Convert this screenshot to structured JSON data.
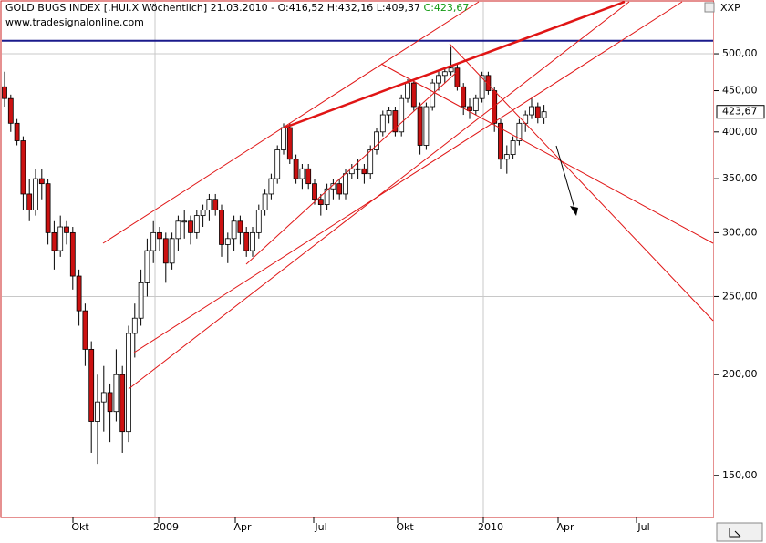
{
  "chart_data": {
    "type": "candlestick",
    "title": "GOLD BUGS INDEX [.HUI.X  Wöchentlich] 21.03.2010 - O:416,52 H:432,16 L:409,37",
    "close_text": "C:423,67",
    "source": "www.tradesignalonline.com",
    "symbol": "XXP",
    "last_price_label": "423,67",
    "log_scale": true,
    "up_color": "#ffffff",
    "down_color": "#cc1111",
    "ylim": [
      133,
      580
    ],
    "yticks": [
      {
        "value": 150,
        "label": "150,00"
      },
      {
        "value": 200,
        "label": "200,00"
      },
      {
        "value": 250,
        "label": "250,00"
      },
      {
        "value": 300,
        "label": "300,00"
      },
      {
        "value": 350,
        "label": "350,00"
      },
      {
        "value": 400,
        "label": "400,00"
      },
      {
        "value": 450,
        "label": "450,00"
      },
      {
        "value": 500,
        "label": "500,00"
      }
    ],
    "grid_values": [
      500,
      250
    ],
    "reference_line": {
      "value": 519,
      "color": "#1a1a8c"
    },
    "xtick_labels": [
      "Okt",
      "2009",
      "Apr",
      "Jul",
      "Okt",
      "2010",
      "Apr",
      "Jul"
    ],
    "candles": [
      [
        455,
        475,
        430,
        440
      ],
      [
        440,
        445,
        400,
        410
      ],
      [
        410,
        415,
        385,
        390
      ],
      [
        390,
        395,
        320,
        335
      ],
      [
        335,
        350,
        310,
        320
      ],
      [
        320,
        360,
        315,
        350
      ],
      [
        350,
        360,
        330,
        345
      ],
      [
        345,
        350,
        290,
        300
      ],
      [
        300,
        310,
        270,
        285
      ],
      [
        285,
        315,
        280,
        305
      ],
      [
        305,
        310,
        290,
        300
      ],
      [
        300,
        305,
        255,
        265
      ],
      [
        265,
        270,
        230,
        240
      ],
      [
        240,
        245,
        205,
        215
      ],
      [
        215,
        220,
        160,
        175
      ],
      [
        175,
        200,
        155,
        185
      ],
      [
        185,
        205,
        170,
        190
      ],
      [
        190,
        195,
        165,
        180
      ],
      [
        180,
        215,
        175,
        200
      ],
      [
        200,
        205,
        160,
        170
      ],
      [
        170,
        230,
        165,
        225
      ],
      [
        225,
        245,
        210,
        235
      ],
      [
        235,
        270,
        230,
        260
      ],
      [
        260,
        295,
        250,
        285
      ],
      [
        285,
        310,
        275,
        300
      ],
      [
        300,
        305,
        285,
        295
      ],
      [
        295,
        300,
        260,
        275
      ],
      [
        275,
        300,
        270,
        295
      ],
      [
        295,
        315,
        285,
        310
      ],
      [
        310,
        320,
        295,
        310
      ],
      [
        310,
        315,
        290,
        300
      ],
      [
        300,
        320,
        295,
        315
      ],
      [
        315,
        325,
        305,
        320
      ],
      [
        320,
        335,
        310,
        330
      ],
      [
        330,
        335,
        315,
        320
      ],
      [
        320,
        325,
        280,
        290
      ],
      [
        290,
        300,
        275,
        295
      ],
      [
        295,
        315,
        285,
        310
      ],
      [
        310,
        315,
        290,
        300
      ],
      [
        300,
        305,
        280,
        285
      ],
      [
        285,
        305,
        280,
        300
      ],
      [
        300,
        325,
        295,
        320
      ],
      [
        320,
        340,
        315,
        335
      ],
      [
        335,
        355,
        330,
        350
      ],
      [
        350,
        385,
        345,
        380
      ],
      [
        380,
        410,
        375,
        405
      ],
      [
        405,
        410,
        365,
        370
      ],
      [
        370,
        375,
        345,
        350
      ],
      [
        350,
        365,
        340,
        360
      ],
      [
        360,
        365,
        340,
        345
      ],
      [
        345,
        350,
        325,
        330
      ],
      [
        330,
        335,
        315,
        325
      ],
      [
        325,
        345,
        320,
        340
      ],
      [
        340,
        350,
        330,
        345
      ],
      [
        345,
        350,
        330,
        335
      ],
      [
        335,
        360,
        330,
        355
      ],
      [
        355,
        365,
        350,
        360
      ],
      [
        360,
        370,
        350,
        360
      ],
      [
        360,
        365,
        345,
        355
      ],
      [
        355,
        385,
        350,
        380
      ],
      [
        380,
        405,
        375,
        400
      ],
      [
        400,
        425,
        395,
        420
      ],
      [
        420,
        430,
        410,
        425
      ],
      [
        425,
        430,
        395,
        400
      ],
      [
        400,
        445,
        395,
        440
      ],
      [
        440,
        465,
        435,
        460
      ],
      [
        460,
        465,
        425,
        430
      ],
      [
        430,
        435,
        375,
        385
      ],
      [
        385,
        435,
        380,
        430
      ],
      [
        430,
        465,
        425,
        460
      ],
      [
        460,
        475,
        450,
        470
      ],
      [
        470,
        480,
        460,
        475
      ],
      [
        475,
        510,
        470,
        480
      ],
      [
        480,
        485,
        450,
        455
      ],
      [
        455,
        460,
        420,
        430
      ],
      [
        430,
        440,
        415,
        425
      ],
      [
        425,
        445,
        420,
        440
      ],
      [
        440,
        475,
        435,
        470
      ],
      [
        470,
        475,
        445,
        450
      ],
      [
        450,
        455,
        400,
        410
      ],
      [
        410,
        415,
        360,
        370
      ],
      [
        370,
        385,
        355,
        375
      ],
      [
        375,
        395,
        370,
        390
      ],
      [
        390,
        415,
        385,
        410
      ],
      [
        410,
        425,
        400,
        420
      ],
      [
        420,
        440,
        415,
        430
      ],
      [
        430,
        435,
        410,
        416.52
      ],
      [
        416.52,
        432.16,
        409.37,
        423.67
      ]
    ]
  }
}
